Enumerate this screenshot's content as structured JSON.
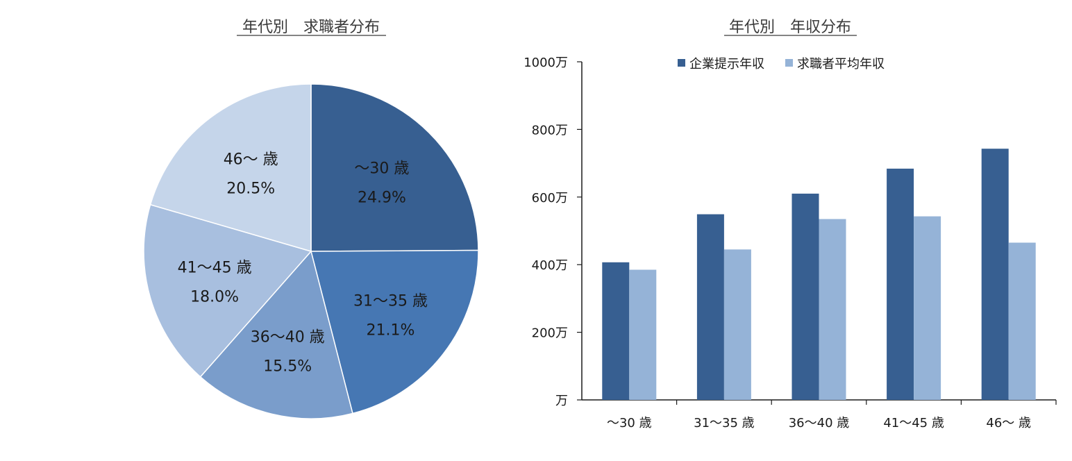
{
  "chart_data": [
    {
      "type": "pie",
      "title": "年代別　求職者分布",
      "slices": [
        {
          "label": "～30 歳",
          "value": 24.9,
          "display": "24.9%",
          "color": "#375f91"
        },
        {
          "label": "31～35 歳",
          "value": 21.1,
          "display": "21.1%",
          "color": "#4677b3"
        },
        {
          "label": "36～40 歳",
          "value": 15.5,
          "display": "15.5%",
          "color": "#7a9dcb"
        },
        {
          "label": "41～45 歳",
          "value": 18.0,
          "display": "18.0%",
          "color": "#a8bfdf"
        },
        {
          "label": "46～ 歳",
          "value": 20.5,
          "display": "20.5%",
          "color": "#c5d5ea"
        }
      ]
    },
    {
      "type": "bar",
      "title": "年代別　年収分布",
      "categories": [
        "～30 歳",
        "31～35 歳",
        "36～40 歳",
        "41～45 歳",
        "46～ 歳"
      ],
      "series": [
        {
          "name": "企業提示年収",
          "color": "#375f91",
          "values": [
            407,
            549,
            610,
            684,
            743
          ]
        },
        {
          "name": "求職者平均年収",
          "color": "#95b3d7",
          "values": [
            385,
            445,
            535,
            543,
            465
          ]
        }
      ],
      "ylim": [
        0,
        1000
      ],
      "yticks": [
        0,
        200,
        400,
        600,
        800,
        1000
      ],
      "ytick_labels": [
        "万",
        "200万",
        "400万",
        "600万",
        "800万",
        "1000万"
      ],
      "grid": false,
      "legend": "top"
    }
  ]
}
